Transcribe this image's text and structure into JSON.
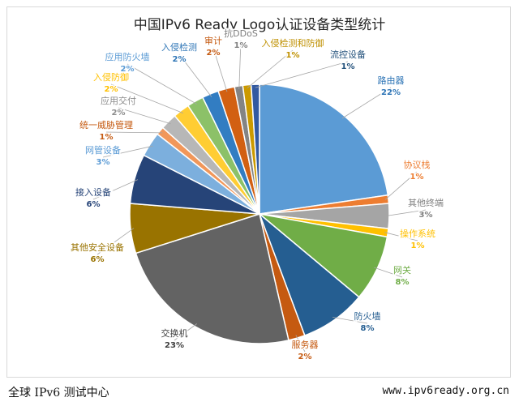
{
  "footer": {
    "left": "全球 IPv6 测试中心",
    "right": "www.ipv6ready.org.cn"
  },
  "chart_data": {
    "type": "pie",
    "title": "中国IPv6 Ready Logo认证设备类型统计",
    "categories": [
      "路由器",
      "协议栈",
      "其他终端",
      "操作系统",
      "网关",
      "防火墙",
      "服务器",
      "交换机",
      "其他安全设备",
      "接入设备",
      "网管设备",
      "统一威胁管理",
      "应用交付",
      "入侵防御",
      "应用防火墙",
      "入侵检测",
      "审计",
      "抗DDoS",
      "入侵检测和防御",
      "流控设备"
    ],
    "values": [
      22,
      1,
      3,
      1,
      8,
      8,
      2,
      23,
      6,
      6,
      3,
      1,
      2,
      2,
      2,
      2,
      2,
      1,
      1,
      1
    ],
    "value_labels": [
      "22%",
      "1%",
      "3%",
      "1%",
      "8%",
      "8%",
      "2%",
      "23%",
      "6%",
      "6%",
      "3%",
      "1%",
      "2%",
      "2%",
      "2%",
      "2%",
      "2%",
      "1%",
      "1%",
      "1%"
    ],
    "colors": [
      "#5b9bd5",
      "#ed7d31",
      "#a5a5a5",
      "#ffc000",
      "#70ad47",
      "#255e91",
      "#c55a11",
      "#636363",
      "#997300",
      "#264478",
      "#7cafdd",
      "#f1975a",
      "#b7b7b7",
      "#ffcd33",
      "#8cc168",
      "#327dc2",
      "#d26012",
      "#848484",
      "#cc9a00",
      "#335aa1"
    ],
    "label_colors": [
      "#2e75b6",
      "#ed7d31",
      "#7f7f7f",
      "#ffc000",
      "#70ad47",
      "#255e91",
      "#c55a11",
      "#404040",
      "#997300",
      "#264478",
      "#5b9bd5",
      "#c55a11",
      "#8c8c8c",
      "#ffc000",
      "#5b9bd5",
      "#2e75b6",
      "#c55a11",
      "#7f7f7f",
      "#bf9000",
      "#1f4e79"
    ],
    "legend": "none",
    "data_labels": "outside with leader lines"
  }
}
